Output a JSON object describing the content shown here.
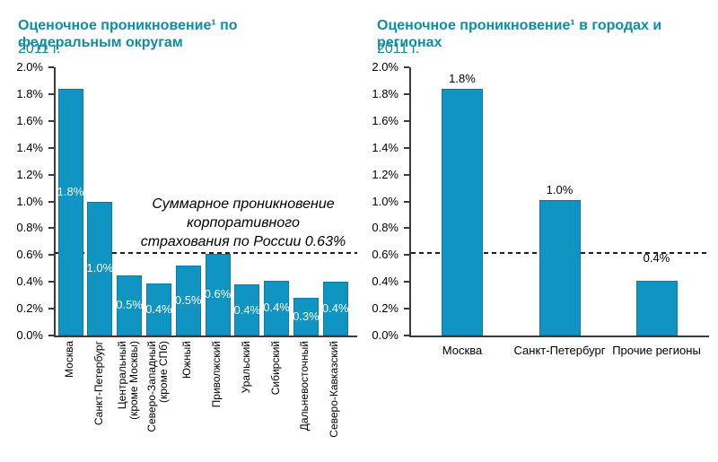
{
  "colors": {
    "title_teal": "#0E8DA6",
    "bar_fill": "#1095C3",
    "bar_edge": "#0D7DA6",
    "axis": "#3A3A3A",
    "dashed_line": "#1F1F1F",
    "bar_label_inside": "#FFFFFF",
    "text": "#000000"
  },
  "chart_data": [
    {
      "type": "bar",
      "title": "Оценочное проникновение¹ по федеральным округам",
      "title_lines": [
        "Оценочное проникновение¹ по",
        "федеральным округам"
      ],
      "subtitle": "2011 г.",
      "xlabel": "",
      "ylabel": "",
      "ylim": [
        0,
        2.0
      ],
      "ytick_step": 0.2,
      "ytick_labels": [
        "2.0%",
        "1.8%",
        "1.6%",
        "1.4%",
        "1.2%",
        "1.0%",
        "0.8%",
        "0.6%",
        "0.4%",
        "0.2%",
        "0.0%"
      ],
      "grid": false,
      "legend": null,
      "categories": [
        "Москва",
        "Санкт-Петербург",
        "Центральный (кроме Москвы)",
        "Северо-Западный (кроме СПб)",
        "Южный",
        "Приволжский",
        "Уральский",
        "Сибирский",
        "Дальневосточный",
        "Северо-Кавказский"
      ],
      "category_label_lines": [
        [
          "Москва"
        ],
        [
          "Санкт-Петербург"
        ],
        [
          "Центральный",
          "(кроме Москвы)"
        ],
        [
          "Северо-Западный",
          "(кроме СПб)"
        ],
        [
          "Южный"
        ],
        [
          "Приволжский"
        ],
        [
          "Уральский"
        ],
        [
          "Сибирский"
        ],
        [
          "Дальневосточный"
        ],
        [
          "Северо-Кавказский"
        ]
      ],
      "values": [
        1.84,
        1.0,
        0.45,
        0.39,
        0.52,
        0.61,
        0.38,
        0.41,
        0.28,
        0.4
      ],
      "value_labels": [
        "1.8%",
        "1.0%",
        "0.5%",
        "0.4%",
        "0.5%",
        "0.6%",
        "0.4%",
        "0.4%",
        "0.3%",
        "0.4%"
      ],
      "value_label_position": "inside",
      "reference_line": {
        "value": 0.63,
        "style": "dashed",
        "label": "Суммарное проникновение корпоративного страхования по России 0.63%",
        "label_lines": [
          "Суммарное проникновение",
          "корпоративного",
          "страхования по России 0.63%"
        ]
      }
    },
    {
      "type": "bar",
      "title": "Оценочное проникновение¹ в городах и регионах",
      "title_lines": [
        "Оценочное проникновение¹ в городах и",
        "регионах"
      ],
      "subtitle": "2011 г.",
      "xlabel": "",
      "ylabel": "",
      "ylim": [
        0,
        2.0
      ],
      "ytick_step": 0.2,
      "ytick_labels": [
        "2.0%",
        "1.8%",
        "1.6%",
        "1.4%",
        "1.2%",
        "1.0%",
        "0.8%",
        "0.6%",
        "0.4%",
        "0.2%",
        "0.0%"
      ],
      "grid": false,
      "legend": null,
      "categories": [
        "Москва",
        "Санкт-Петербург",
        "Прочие регионы"
      ],
      "category_label_lines": [
        [
          "Москва"
        ],
        [
          "Санкт-Петербург"
        ],
        [
          "Прочие регионы"
        ]
      ],
      "values": [
        1.84,
        1.01,
        0.41
      ],
      "value_labels": [
        "1.8%",
        "1.0%",
        "0.4%"
      ],
      "value_label_position": "above",
      "reference_line": {
        "value": 0.63,
        "style": "dashed"
      }
    }
  ]
}
